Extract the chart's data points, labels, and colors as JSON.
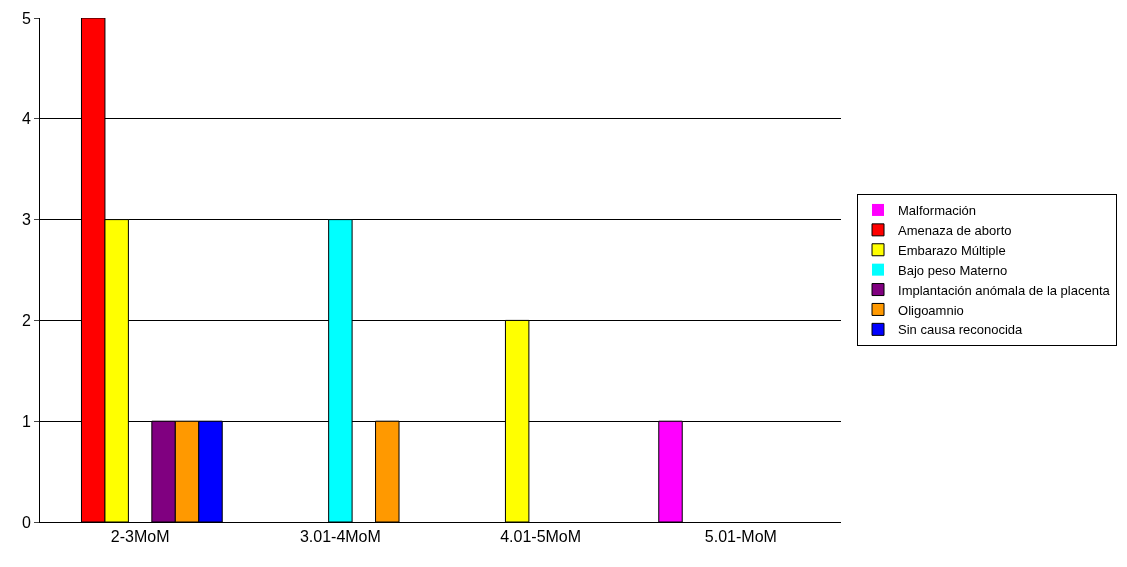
{
  "chart_data": {
    "type": "bar",
    "categories": [
      "2-3MoM",
      "3.01-4MoM",
      "4.01-5MoM",
      "5.01-MoM"
    ],
    "series": [
      {
        "name": "Malformación",
        "color": "#ff00ff",
        "values": [
          0,
          0,
          0,
          1
        ]
      },
      {
        "name": "Amenaza de aborto",
        "color": "#ff0000",
        "values": [
          5,
          0,
          0,
          0
        ]
      },
      {
        "name": "Embarazo Múltiple",
        "color": "#ffff00",
        "values": [
          3,
          0,
          2,
          0
        ]
      },
      {
        "name": "Bajo peso Materno",
        "color": "#00ffff",
        "values": [
          0,
          3,
          0,
          0
        ]
      },
      {
        "name": "Implantación anómala de la placenta",
        "color": "#800080",
        "values": [
          1,
          0,
          0,
          0
        ]
      },
      {
        "name": "Oligoamnio",
        "color": "#ff9900",
        "values": [
          1,
          1,
          0,
          0
        ]
      },
      {
        "name": "Sin causa reconocida",
        "color": "#0000ff",
        "values": [
          1,
          0,
          0,
          0
        ]
      }
    ],
    "ylim": [
      0,
      5
    ],
    "yticks": [
      0,
      1,
      2,
      3,
      4,
      5
    ],
    "grid": "y",
    "legend": "right"
  }
}
